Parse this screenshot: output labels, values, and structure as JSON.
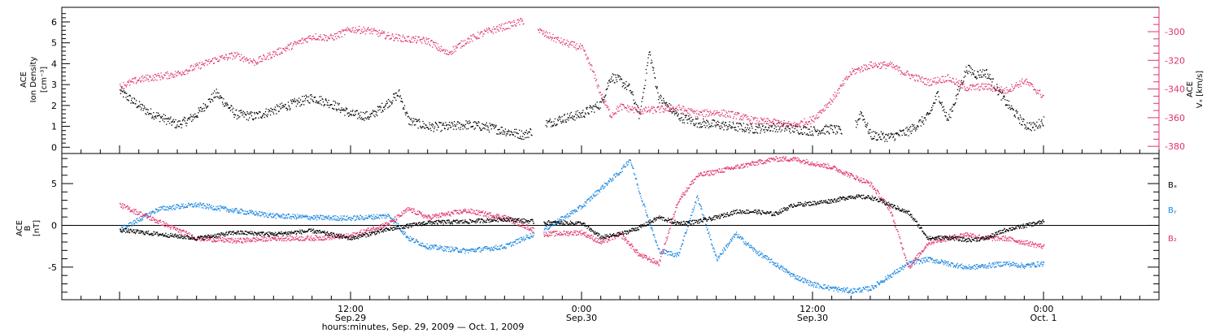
{
  "chart_data": [
    {
      "type": "scatter",
      "panel": "top",
      "ylabel_left": [
        "ACE",
        "Ion Density",
        "[cm⁻³]"
      ],
      "ylabel_right": [
        "ACE",
        "Vₓ [km/s]"
      ],
      "ylim_left": [
        -0.3,
        6.7
      ],
      "ylim_right": [
        -385,
        -283
      ],
      "yticks_left": [
        0,
        1,
        2,
        3,
        4,
        5,
        6
      ],
      "yticks_right": [
        -380,
        -360,
        -340,
        -320,
        -300
      ],
      "right_axis_color": "#e0336b",
      "grid": false,
      "x_unit": "hours since 2009-09-29 00:00",
      "series": [
        {
          "name": "Ion Density",
          "color": "#000000",
          "axis": "left",
          "x": [
            0,
            1,
            1.5,
            2,
            3,
            3.5,
            4,
            5,
            6,
            7,
            8,
            9,
            10,
            11,
            12,
            13,
            14,
            14.5,
            15,
            16,
            17,
            18,
            19,
            20,
            21,
            22,
            23,
            24,
            25,
            25.5,
            26,
            26.5,
            27,
            27.5,
            28,
            29,
            30,
            31,
            32,
            33,
            34,
            35,
            36,
            37,
            38,
            38.5,
            39,
            40,
            41,
            42,
            42.5,
            43,
            44,
            44.5,
            45,
            46,
            47,
            47.5,
            48
          ],
          "y": [
            2.7,
            2.0,
            1.7,
            1.5,
            1.1,
            1.3,
            1.6,
            2.6,
            1.6,
            1.5,
            1.8,
            2.1,
            2.4,
            2.1,
            1.6,
            1.5,
            2.2,
            2.6,
            1.3,
            1.0,
            1.0,
            1.1,
            1.0,
            0.8,
            0.6,
            1.1,
            1.4,
            1.6,
            2.1,
            3.4,
            3.2,
            2.8,
            1.5,
            4.6,
            2.4,
            1.5,
            1.2,
            1.1,
            1.0,
            0.9,
            1.0,
            0.9,
            0.8,
            0.9,
            0.6,
            1.7,
            0.6,
            0.5,
            0.8,
            1.5,
            2.6,
            1.3,
            3.8,
            3.5,
            3.6,
            2.2,
            1.1,
            1.0,
            1.3
          ],
          "gaps": [
            [
              21.4,
              22.1
            ],
            [
              37.5,
              38.2
            ]
          ]
        },
        {
          "name": "Vx",
          "color": "#e0336b",
          "axis": "right",
          "x": [
            0,
            1,
            2,
            3,
            4,
            5,
            6,
            7,
            8,
            9,
            10,
            11,
            12,
            13,
            14,
            15,
            16,
            17,
            18,
            19,
            20,
            21,
            22,
            23,
            24,
            24.5,
            25,
            25.5,
            26,
            27,
            28,
            29,
            30,
            31,
            32,
            33,
            34,
            35,
            36,
            37,
            38,
            39,
            40,
            41,
            42,
            43,
            44,
            45,
            46,
            47,
            48
          ],
          "y": [
            -338,
            -333,
            -331,
            -329,
            -324,
            -319,
            -316,
            -321,
            -315,
            -309,
            -303,
            -304,
            -298,
            -299,
            -303,
            -305,
            -306,
            -315,
            -306,
            -300,
            -296,
            -292,
            -301,
            -307,
            -311,
            -325,
            -344,
            -358,
            -352,
            -355,
            -354,
            -353,
            -357,
            -356,
            -358,
            -362,
            -363,
            -365,
            -361,
            -347,
            -328,
            -323,
            -323,
            -330,
            -335,
            -332,
            -339,
            -338,
            -341,
            -334,
            -345
          ],
          "gaps": [
            [
              21.0,
              21.7
            ]
          ]
        }
      ]
    },
    {
      "type": "scatter",
      "panel": "bottom",
      "ylabel": [
        "ACE",
        "B",
        "[nT]"
      ],
      "ylim": [
        -8.9,
        8.6
      ],
      "yticks": [
        -5,
        0,
        5
      ],
      "zero_line": true,
      "grid": false,
      "x_unit": "hours since 2009-09-29 00:00",
      "xticks": [
        {
          "x": 12,
          "label": "12:00",
          "sublabel": "Sep.29"
        },
        {
          "x": 24,
          "label": "0:00",
          "sublabel": "Sep.30"
        },
        {
          "x": 36,
          "label": "12:00",
          "sublabel": "Sep.30"
        },
        {
          "x": 48,
          "label": "0:00",
          "sublabel": "Oct. 1"
        }
      ],
      "xlim": [
        -3,
        54
      ],
      "xlabel": "hours:minutes, Sep. 29, 2009 — Oct. 1, 2009",
      "series": [
        {
          "name": "Bₓ",
          "color": "#000000",
          "x": [
            0,
            2,
            4,
            6,
            8,
            10,
            12,
            14,
            16,
            18,
            20,
            22,
            24,
            25,
            26,
            27,
            28,
            29,
            30,
            31,
            32,
            33,
            34,
            35,
            36,
            37,
            38,
            39,
            40,
            41,
            42,
            43,
            44,
            45,
            46,
            47,
            48
          ],
          "y": [
            -0.5,
            -1.0,
            -1.5,
            -0.8,
            -1.0,
            -0.6,
            -1.5,
            -0.4,
            0.4,
            0.5,
            0.8,
            0.4,
            0.3,
            -1.4,
            -1.0,
            -0.2,
            1.0,
            0.3,
            0.5,
            1.0,
            1.7,
            1.7,
            1.4,
            2.5,
            2.7,
            3.0,
            3.5,
            3.4,
            2.5,
            1.5,
            -1.5,
            -1.4,
            -1.7,
            -1.5,
            -0.5,
            0.0,
            0.5
          ],
          "gaps": [
            [
              21.5,
              22.0
            ]
          ]
        },
        {
          "name": "Bᵧ",
          "color": "#1a86e0",
          "x": [
            0,
            2,
            3,
            4,
            6,
            8,
            10,
            12,
            14,
            15,
            16,
            18,
            20,
            22,
            24,
            25,
            26,
            26.5,
            27,
            28,
            29,
            30,
            31,
            32,
            33,
            34,
            35,
            36,
            37,
            38,
            39,
            40,
            41,
            42,
            43,
            44,
            45,
            46,
            47,
            48
          ],
          "y": [
            -0.5,
            2.0,
            2.3,
            2.5,
            1.8,
            1.2,
            1.0,
            0.9,
            1.2,
            -1.5,
            -2.5,
            -3.0,
            -2.5,
            -0.5,
            2.3,
            4.5,
            6.5,
            8.0,
            4.0,
            -3.0,
            -3.5,
            3.5,
            -4.0,
            -1.0,
            -3.0,
            -4.5,
            -6.0,
            -7.0,
            -7.5,
            -7.8,
            -7.5,
            -6.0,
            -4.5,
            -4.0,
            -4.5,
            -5.0,
            -4.8,
            -4.5,
            -4.8,
            -4.5
          ],
          "gaps": [
            [
              21.5,
              22.0
            ]
          ]
        },
        {
          "name": "B₂",
          "color": "#e0336b",
          "x": [
            0,
            2,
            4,
            6,
            8,
            10,
            12,
            14,
            15,
            16,
            18,
            20,
            22,
            24,
            25,
            26,
            27,
            28,
            29,
            30,
            31,
            32,
            33,
            34,
            35,
            36,
            37,
            38,
            39,
            40,
            41,
            42,
            43,
            44,
            45,
            46,
            47,
            48
          ],
          "y": [
            2.5,
            0.5,
            -1.5,
            -1.8,
            -1.5,
            -1.5,
            -1.2,
            0.3,
            2.0,
            1.0,
            1.8,
            1.0,
            -1.0,
            -0.8,
            -2.0,
            -1.0,
            -3.5,
            -4.5,
            3.0,
            6.0,
            6.5,
            7.0,
            7.5,
            8.0,
            8.0,
            7.5,
            7.0,
            6.0,
            5.0,
            2.0,
            -5.0,
            -2.0,
            -1.5,
            -1.0,
            -1.5,
            -1.5,
            -2.0,
            -2.5
          ],
          "gaps": [
            [
              21.5,
              22.0
            ]
          ]
        }
      ]
    }
  ]
}
